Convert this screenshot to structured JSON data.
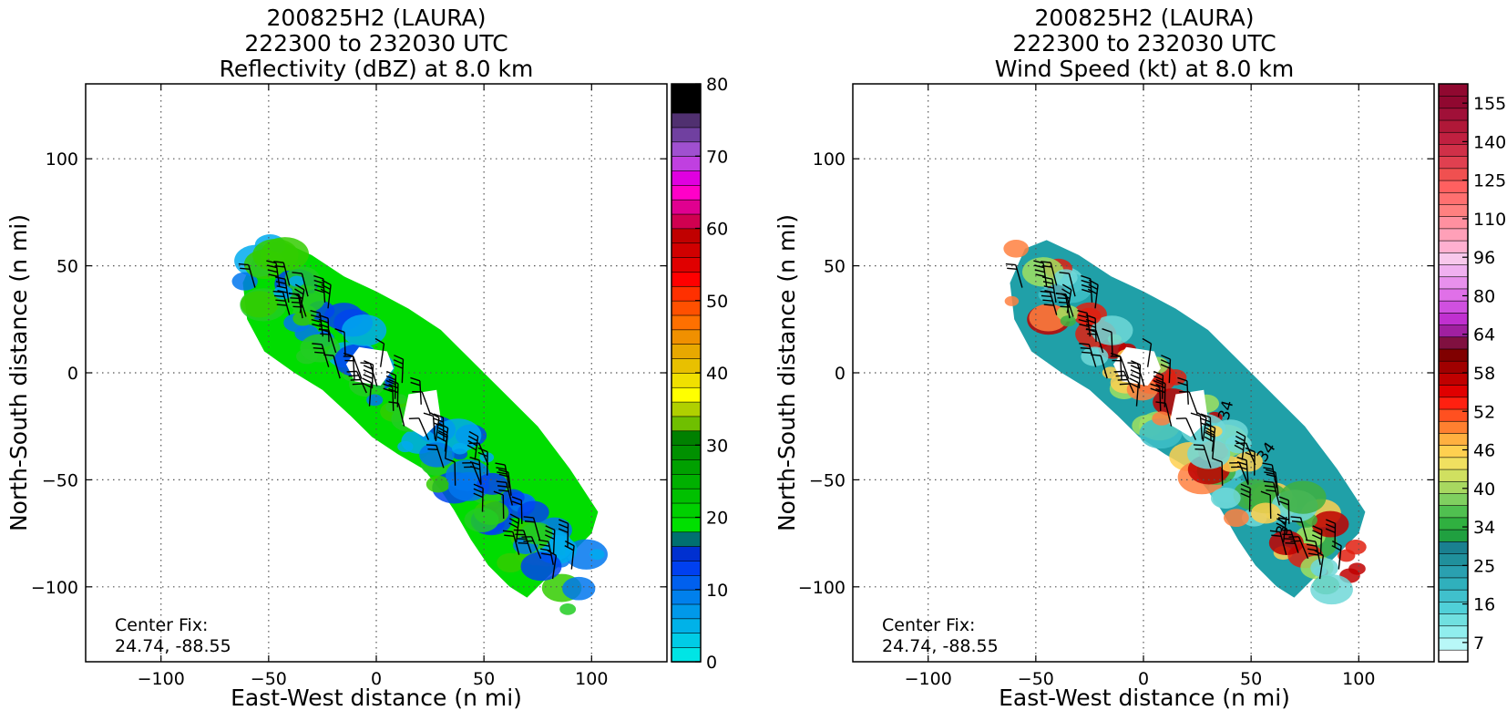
{
  "chart_data": [
    {
      "type": "heatmap",
      "id": "refl",
      "title_lines": [
        "200825H2 (LAURA)",
        "222300 to 232030 UTC",
        "Reflectivity (dBZ) at 8.0 km"
      ],
      "xlabel": "East-West distance (n mi)",
      "ylabel": "North-South distance (n mi)",
      "xlim": [
        -135,
        135
      ],
      "ylim": [
        -135,
        135
      ],
      "xticks": [
        -100,
        -50,
        0,
        50,
        100
      ],
      "yticks": [
        -100,
        -50,
        0,
        50,
        100
      ],
      "xtick_labels": [
        "−100",
        "−50",
        "0",
        "50",
        "100"
      ],
      "ytick_labels": [
        "−100",
        "−50",
        "0",
        "50",
        "100"
      ],
      "grid": true,
      "center_fix_label": "Center Fix:",
      "center_fix_value": "24.74, -88.55",
      "colorbar": {
        "min": 0,
        "max": 80,
        "ticks": [
          0,
          10,
          20,
          30,
          40,
          50,
          60,
          70,
          80
        ],
        "tick_labels": [
          "0",
          "10",
          "20",
          "30",
          "40",
          "50",
          "60",
          "70",
          "80"
        ],
        "colors": [
          "#00e5e5",
          "#00cce6",
          "#00b2e8",
          "#0099ea",
          "#0080ec",
          "#0060ee",
          "#0040f0",
          "#0030d0",
          "#007070",
          "#00e000",
          "#00d000",
          "#00c000",
          "#00b000",
          "#00a000",
          "#009000",
          "#008000",
          "#6fbf00",
          "#b0d000",
          "#ffff00",
          "#f0e000",
          "#e8c000",
          "#e8a800",
          "#f09000",
          "#ff7000",
          "#ff5000",
          "#ff3000",
          "#ff0000",
          "#e00000",
          "#d00000",
          "#c00000",
          "#d00050",
          "#e00090",
          "#ff00c8",
          "#e000e0",
          "#c040e0",
          "#a050d0",
          "#7040a0",
          "#503070",
          "#000000",
          "#000000"
        ]
      },
      "field_colors": [
        "#00dd00",
        "#22cc22",
        "#0044ee",
        "#0077ee",
        "#00aaee",
        "#33cc00"
      ]
    },
    {
      "type": "heatmap",
      "id": "wind",
      "title_lines": [
        "200825H2 (LAURA)",
        "222300 to 232030 UTC",
        "Wind Speed (kt) at 8.0 km"
      ],
      "xlabel": "East-West distance (n mi)",
      "ylabel": "North-South distance (n mi)",
      "xlim": [
        -135,
        135
      ],
      "ylim": [
        -135,
        135
      ],
      "xticks": [
        -100,
        -50,
        0,
        50,
        100
      ],
      "yticks": [
        -100,
        -50,
        0,
        50,
        100
      ],
      "xtick_labels": [
        "−100",
        "−50",
        "0",
        "50",
        "100"
      ],
      "ytick_labels": [
        "−100",
        "−50",
        "0",
        "50",
        "100"
      ],
      "grid": true,
      "center_fix_label": "Center Fix:",
      "center_fix_value": "24.74, -88.55",
      "contour_label": "34",
      "colorbar": {
        "n_bins": 33,
        "tick_bins": [
          0,
          3,
          6,
          9,
          12,
          15,
          18,
          21,
          24,
          27,
          30,
          33,
          36,
          39,
          42,
          45,
          48
        ],
        "tick_labels": [
          "7",
          "16",
          "25",
          "34",
          "40",
          "46",
          "52",
          "58",
          "64",
          "80",
          "96",
          "110",
          "125",
          "140",
          "155"
        ],
        "colors": [
          "#ffffff",
          "#b8f8f8",
          "#90eeee",
          "#70e0e0",
          "#50d0d8",
          "#40c0cc",
          "#30b0bc",
          "#2aa0b0",
          "#20909c",
          "#1a8090",
          "#20a040",
          "#30b040",
          "#50c050",
          "#80d060",
          "#a8d860",
          "#d0e060",
          "#f0e060",
          "#ffd050",
          "#ffb040",
          "#ff8030",
          "#ff5020",
          "#ff2010",
          "#e00000",
          "#c00000",
          "#a00000",
          "#800000",
          "#801040",
          "#a020a0",
          "#c030d0",
          "#d050e0",
          "#e070e8",
          "#e890ec",
          "#f0b0f0",
          "#f8c8ec",
          "#ffb0d0",
          "#ffa0b8",
          "#ff90a0",
          "#ff8080",
          "#ff7070",
          "#ff6060",
          "#f05050",
          "#e04050",
          "#d03048",
          "#c02040",
          "#b01838",
          "#a01038",
          "#900830",
          "#900830"
        ]
      },
      "field_colors": [
        "#20a0a8",
        "#40c0c8",
        "#70d8d8",
        "#a0e060",
        "#40b040",
        "#ff8040",
        "#e02010",
        "#c00000",
        "#ffd050"
      ]
    }
  ]
}
